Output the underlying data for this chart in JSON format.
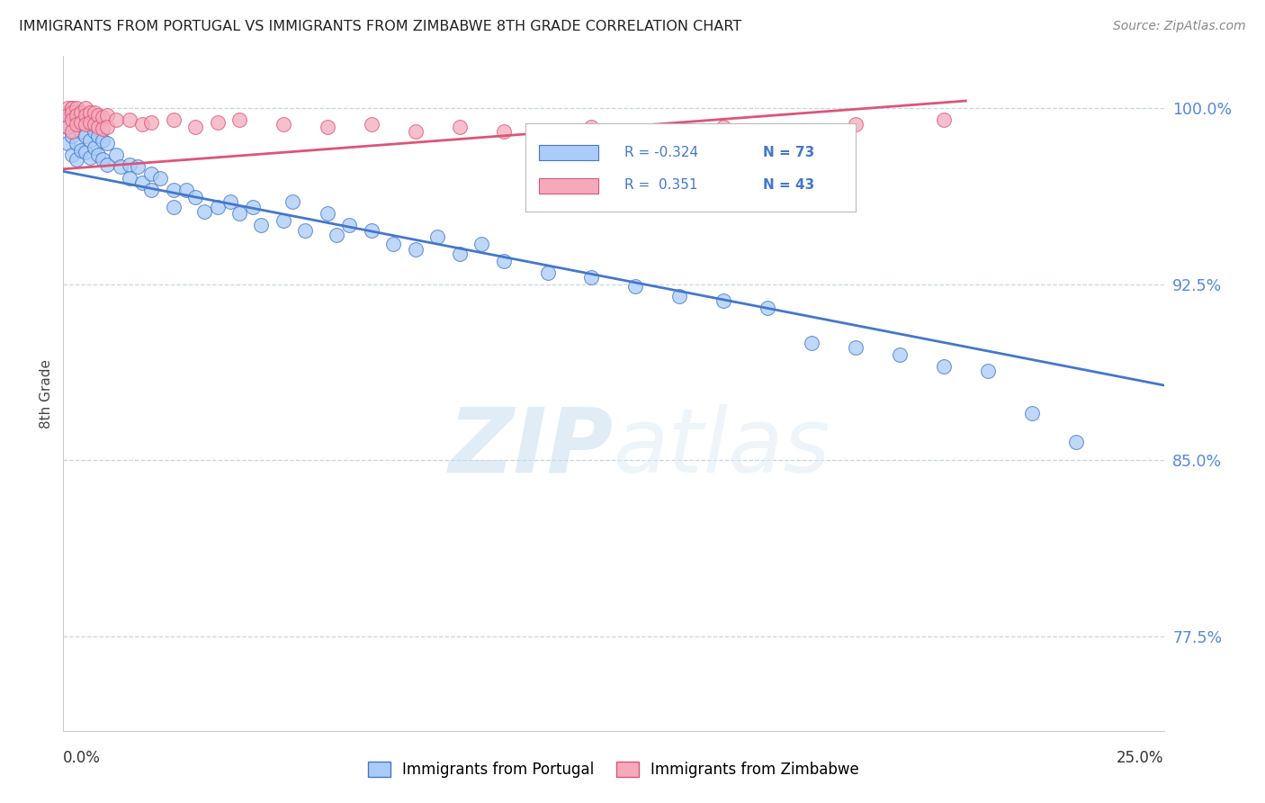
{
  "title": "IMMIGRANTS FROM PORTUGAL VS IMMIGRANTS FROM ZIMBABWE 8TH GRADE CORRELATION CHART",
  "source": "Source: ZipAtlas.com",
  "ylabel": "8th Grade",
  "xlim": [
    0.0,
    0.25
  ],
  "ylim": [
    0.735,
    1.022
  ],
  "yticks": [
    0.775,
    0.85,
    0.925,
    1.0
  ],
  "ytick_labels": [
    "77.5%",
    "85.0%",
    "92.5%",
    "100.0%"
  ],
  "legend_r_portugal": "-0.324",
  "legend_n_portugal": "73",
  "legend_r_zimbabwe": "0.351",
  "legend_n_zimbabwe": "43",
  "color_portugal": "#aaccf8",
  "color_zimbabwe": "#f4aabb",
  "line_color_portugal": "#4477cc",
  "line_color_zimbabwe": "#dd5577",
  "background_color": "#ffffff",
  "watermark_zip": "ZIP",
  "watermark_atlas": "atlas",
  "port_line_x": [
    0.0,
    0.25
  ],
  "port_line_y": [
    0.973,
    0.882
  ],
  "zim_line_x": [
    0.0,
    0.205
  ],
  "zim_line_y": [
    0.974,
    1.003
  ],
  "port_scatter_x": [
    0.001,
    0.001,
    0.001,
    0.002,
    0.002,
    0.002,
    0.002,
    0.003,
    0.003,
    0.003,
    0.003,
    0.004,
    0.004,
    0.004,
    0.005,
    0.005,
    0.005,
    0.006,
    0.006,
    0.006,
    0.007,
    0.007,
    0.008,
    0.008,
    0.009,
    0.009,
    0.01,
    0.01,
    0.012,
    0.013,
    0.015,
    0.015,
    0.017,
    0.018,
    0.02,
    0.02,
    0.022,
    0.025,
    0.025,
    0.028,
    0.03,
    0.032,
    0.035,
    0.038,
    0.04,
    0.043,
    0.045,
    0.05,
    0.052,
    0.055,
    0.06,
    0.062,
    0.065,
    0.07,
    0.075,
    0.08,
    0.085,
    0.09,
    0.095,
    0.1,
    0.11,
    0.12,
    0.13,
    0.14,
    0.15,
    0.16,
    0.17,
    0.18,
    0.19,
    0.2,
    0.21,
    0.22,
    0.23
  ],
  "port_scatter_y": [
    0.998,
    0.992,
    0.985,
    1.0,
    0.996,
    0.988,
    0.98,
    0.998,
    0.993,
    0.985,
    0.978,
    0.995,
    0.99,
    0.982,
    0.997,
    0.988,
    0.981,
    0.993,
    0.986,
    0.979,
    0.99,
    0.983,
    0.988,
    0.98,
    0.986,
    0.978,
    0.985,
    0.976,
    0.98,
    0.975,
    0.976,
    0.97,
    0.975,
    0.968,
    0.972,
    0.965,
    0.97,
    0.965,
    0.958,
    0.965,
    0.962,
    0.956,
    0.958,
    0.96,
    0.955,
    0.958,
    0.95,
    0.952,
    0.96,
    0.948,
    0.955,
    0.946,
    0.95,
    0.948,
    0.942,
    0.94,
    0.945,
    0.938,
    0.942,
    0.935,
    0.93,
    0.928,
    0.924,
    0.92,
    0.918,
    0.915,
    0.9,
    0.898,
    0.895,
    0.89,
    0.888,
    0.87,
    0.858
  ],
  "zim_scatter_x": [
    0.001,
    0.001,
    0.001,
    0.002,
    0.002,
    0.002,
    0.002,
    0.003,
    0.003,
    0.003,
    0.004,
    0.004,
    0.005,
    0.005,
    0.005,
    0.006,
    0.006,
    0.007,
    0.007,
    0.008,
    0.008,
    0.009,
    0.009,
    0.01,
    0.01,
    0.012,
    0.015,
    0.018,
    0.02,
    0.025,
    0.03,
    0.035,
    0.04,
    0.05,
    0.06,
    0.07,
    0.08,
    0.09,
    0.1,
    0.12,
    0.15,
    0.18,
    0.2
  ],
  "zim_scatter_y": [
    1.0,
    0.997,
    0.992,
    1.0,
    0.998,
    0.995,
    0.99,
    1.0,
    0.997,
    0.993,
    0.998,
    0.994,
    1.0,
    0.997,
    0.993,
    0.998,
    0.994,
    0.998,
    0.993,
    0.997,
    0.992,
    0.996,
    0.991,
    0.997,
    0.992,
    0.995,
    0.995,
    0.993,
    0.994,
    0.995,
    0.992,
    0.994,
    0.995,
    0.993,
    0.992,
    0.993,
    0.99,
    0.992,
    0.99,
    0.992,
    0.992,
    0.993,
    0.995
  ]
}
